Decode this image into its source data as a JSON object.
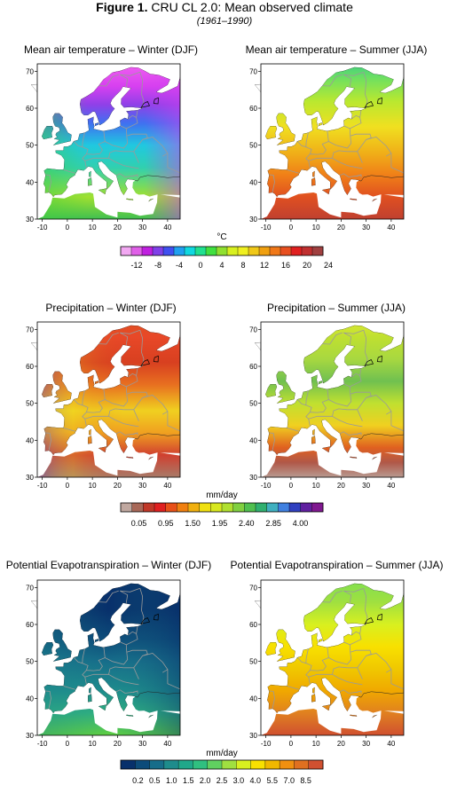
{
  "figure": {
    "title_bold": "Figure 1.",
    "title_rest": " CRU CL 2.0: Mean observed climate",
    "subtitle": "(1961–1990)"
  },
  "axes": {
    "xticks": [
      "-10",
      "0",
      "10",
      "20",
      "30",
      "40"
    ],
    "yticks": [
      "70",
      "60",
      "50",
      "40",
      "30"
    ]
  },
  "chart_data": [
    {
      "type": "heatmap",
      "title": "Mean air temperature – Winter (DJF)",
      "xlim": [
        -12,
        45
      ],
      "ylim": [
        30,
        72
      ],
      "variable": "temperature",
      "unit": "°C",
      "scheme": "temp_winter"
    },
    {
      "type": "heatmap",
      "title": "Mean air temperature – Summer (JJA)",
      "xlim": [
        -12,
        45
      ],
      "ylim": [
        30,
        72
      ],
      "variable": "temperature",
      "unit": "°C",
      "scheme": "temp_summer"
    },
    {
      "type": "heatmap",
      "title": "Precipitation – Winter (DJF)",
      "xlim": [
        -12,
        45
      ],
      "ylim": [
        30,
        72
      ],
      "variable": "precipitation",
      "unit": "mm/day",
      "scheme": "pre_winter"
    },
    {
      "type": "heatmap",
      "title": "Precipitation – Summer (JJA)",
      "xlim": [
        -12,
        45
      ],
      "ylim": [
        30,
        72
      ],
      "variable": "precipitation",
      "unit": "mm/day",
      "scheme": "pre_summer"
    },
    {
      "type": "heatmap",
      "title": "Potential Evapotranspiration – Winter (DJF)",
      "xlim": [
        -12,
        45
      ],
      "ylim": [
        30,
        72
      ],
      "variable": "pet",
      "unit": "mm/day",
      "scheme": "pet_winter"
    },
    {
      "type": "heatmap",
      "title": "Potential Evapotranspiration – Summer (JJA)",
      "xlim": [
        -12,
        45
      ],
      "ylim": [
        30,
        72
      ],
      "variable": "pet",
      "unit": "mm/day",
      "scheme": "pet_summer"
    }
  ],
  "colorbars": [
    {
      "unit": "°C",
      "colors": [
        "#f2a8f2",
        "#e060e8",
        "#c020e0",
        "#8040e8",
        "#4050f0",
        "#20a0f0",
        "#10d8e0",
        "#20e090",
        "#40e040",
        "#90e030",
        "#d8f020",
        "#f0f020",
        "#f0c818",
        "#f0a010",
        "#f07818",
        "#e85020",
        "#e02020",
        "#c03030",
        "#a04040"
      ],
      "labels": [
        "-12",
        "-8",
        "-4",
        "0",
        "4",
        "8",
        "12",
        "16",
        "20",
        "24"
      ]
    },
    {
      "unit": "mm/day",
      "colors": [
        "#c0a8a0",
        "#a86858",
        "#c03828",
        "#e02020",
        "#e85018",
        "#f08010",
        "#f0b010",
        "#f0e010",
        "#d8e820",
        "#b0e030",
        "#80d040",
        "#50c050",
        "#30b070",
        "#40b0c0",
        "#4080e0",
        "#3040c0",
        "#6020a0",
        "#801890"
      ],
      "labels": [
        "0.05",
        "0.95",
        "1.50",
        "1.95",
        "2.40",
        "2.85",
        "4.00"
      ]
    },
    {
      "unit": "mm/day",
      "colors": [
        "#08306b",
        "#0d4b7a",
        "#176d8a",
        "#1e8c8c",
        "#20a88a",
        "#30c080",
        "#60d060",
        "#a0e040",
        "#d8f020",
        "#f8e000",
        "#f0b800",
        "#f09010",
        "#e07020",
        "#d05030"
      ],
      "labels": [
        "0.2",
        "0.5",
        "1.0",
        "1.5",
        "2.0",
        "2.5",
        "3.0",
        "4.0",
        "5.5",
        "7.0",
        "8.5"
      ]
    }
  ]
}
